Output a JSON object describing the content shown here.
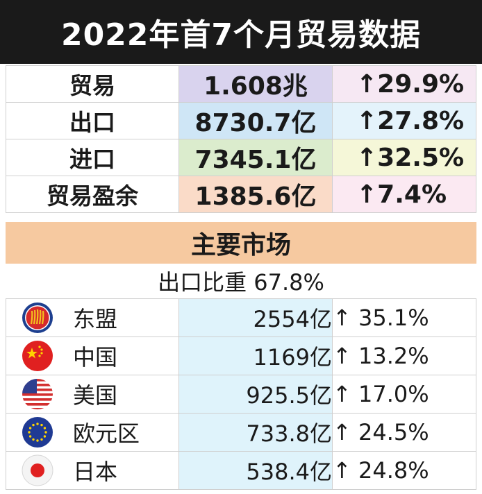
{
  "title": "2022年首7个月贸易数据",
  "summary": [
    {
      "label": "贸易",
      "value": "1.608兆",
      "change": "↑29.9%",
      "value_bg": "#d9d3ee",
      "change_bg": "#f6e8f3"
    },
    {
      "label": "出口",
      "value": "8730.7亿",
      "change": "↑27.8%",
      "value_bg": "#cfe6f6",
      "change_bg": "#e4f3fb"
    },
    {
      "label": "进口",
      "value": "7345.1亿",
      "change": "↑32.5%",
      "value_bg": "#dbeccd",
      "change_bg": "#f5f7d8"
    },
    {
      "label": "贸易盈余",
      "value": "1385.6亿",
      "change": "↑7.4%",
      "value_bg": "#fadbc8",
      "change_bg": "#fbe9f2"
    }
  ],
  "markets": {
    "heading": "主要市场",
    "share": "出口比重 67.8%",
    "items": [
      {
        "icon": "asean-flag-icon",
        "name": "东盟",
        "value": "2554亿",
        "change": "↑ 35.1%"
      },
      {
        "icon": "china-flag-icon",
        "name": "中国",
        "value": "1169亿",
        "change": "↑ 13.2%"
      },
      {
        "icon": "usa-flag-icon",
        "name": "美国",
        "value": "925.5亿",
        "change": "↑ 17.0%"
      },
      {
        "icon": "eu-flag-icon",
        "name": "欧元区",
        "value": "733.8亿",
        "change": "↑ 24.5%"
      },
      {
        "icon": "japan-flag-icon",
        "name": "日本",
        "value": "538.4亿",
        "change": "↑ 24.8%"
      }
    ]
  },
  "colors": {
    "title_bg": "#1a1a1a",
    "section_bg": "#f6c9a0",
    "market_value_bg": "#dff3fb"
  }
}
